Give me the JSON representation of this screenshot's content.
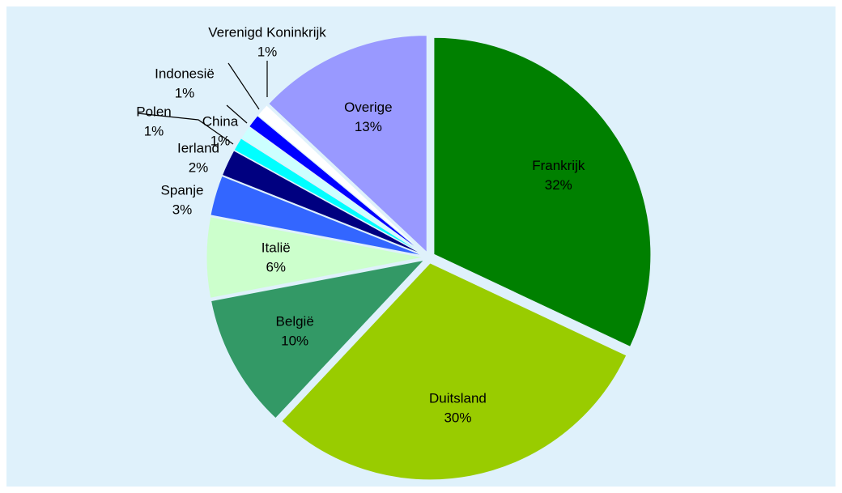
{
  "chart_data": {
    "type": "pie",
    "categories": [
      "Frankrijk",
      "Duitsland",
      "België",
      "Italië",
      "Spanje",
      "Ierland",
      "Polen",
      "China",
      "Indonesië",
      "Verenigd Koninkrijk",
      "Overige"
    ],
    "values": [
      32,
      30,
      10,
      6,
      3,
      2,
      1,
      1,
      1,
      1,
      13
    ],
    "value_labels": [
      "32%",
      "30%",
      "10%",
      "6%",
      "3%",
      "2%",
      "1%",
      "1%",
      "1%",
      "1%",
      "13%"
    ],
    "colors": [
      "#008000",
      "#99cc00",
      "#339966",
      "#ccffcc",
      "#3366ff",
      "#000080",
      "#00ffff",
      "#ccffff",
      "#0000ff",
      "#ffffff",
      "#9999ff"
    ]
  }
}
